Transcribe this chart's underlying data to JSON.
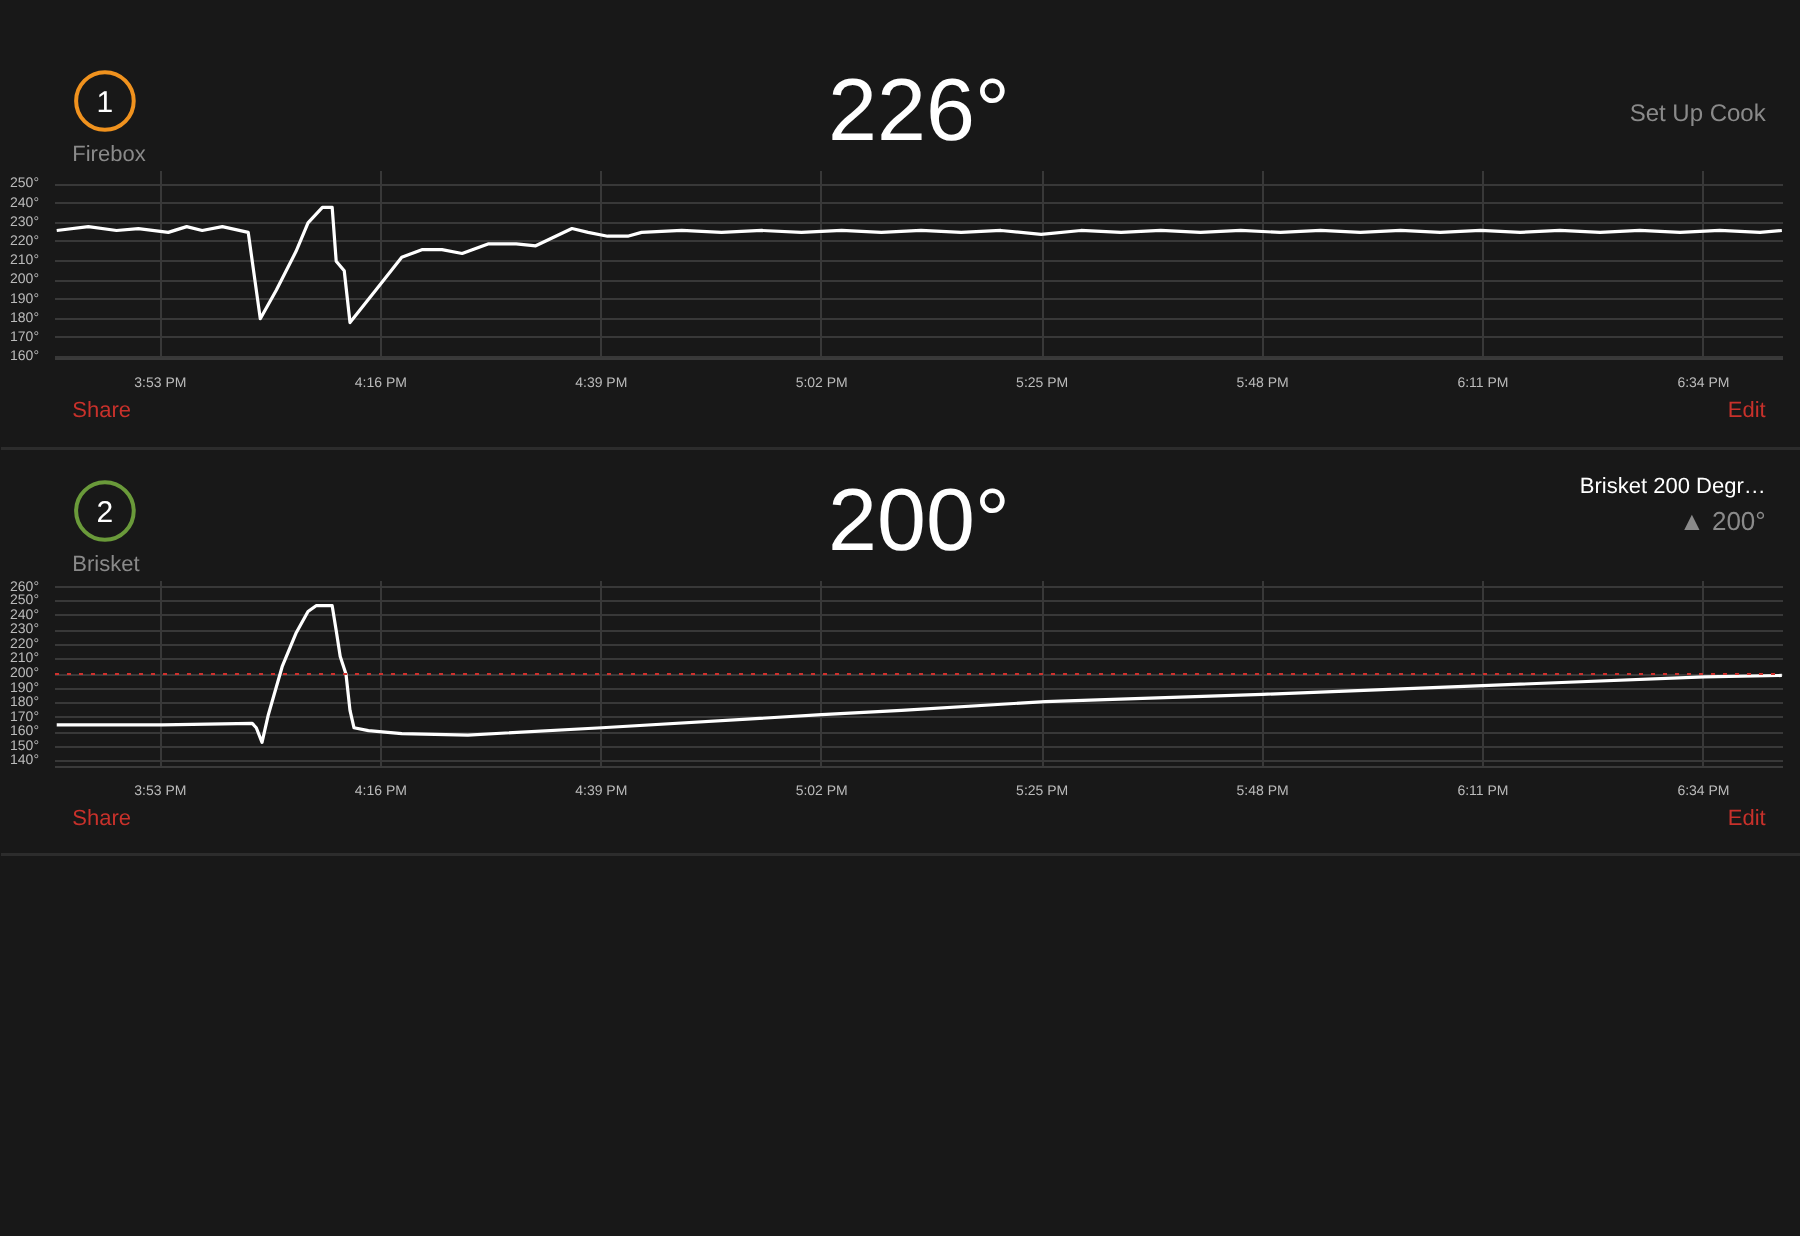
{
  "chart_data": [
    {
      "type": "line",
      "title": "226°",
      "annotations": [
        "1",
        "Set Up Cook",
        "Share",
        "Edit"
      ],
      "series": [
        {
          "name": "Firebox",
          "color": "#ffffff",
          "x": [
            15.703,
            15.758,
            15.807,
            15.845,
            15.897,
            15.929,
            15.956,
            15.991,
            16.036,
            16.057,
            16.085,
            16.119,
            16.14,
            16.165,
            16.182,
            16.189,
            16.203,
            16.213,
            16.258,
            16.303,
            16.338,
            16.373,
            16.408,
            16.453,
            16.502,
            16.536,
            16.599,
            16.627,
            16.661,
            16.696,
            16.72,
            16.79,
            16.859,
            16.929,
            16.998,
            17.068,
            17.137,
            17.206,
            17.276,
            17.345,
            17.415,
            17.484,
            17.554,
            17.623,
            17.692,
            17.762,
            17.831,
            17.901,
            17.97,
            18.04,
            18.109,
            18.179,
            18.248,
            18.317,
            18.387,
            18.456,
            18.526,
            18.595,
            18.665,
            18.703
          ],
          "values": [
            226,
            228,
            226,
            227,
            225,
            228,
            226,
            228,
            225,
            180,
            195,
            215,
            230,
            238,
            238,
            210,
            205,
            178,
            195,
            212,
            216,
            216,
            214,
            219,
            219,
            218,
            227,
            225,
            223,
            223,
            225,
            226,
            225,
            226,
            225,
            226,
            225,
            226,
            225,
            226,
            224,
            226,
            225,
            226,
            225,
            226,
            225,
            226,
            225,
            226,
            225,
            226,
            225,
            226,
            225,
            226,
            225,
            226,
            225,
            226
          ]
        }
      ],
      "xlim": [
        15.7,
        18.705
      ],
      "ylim": [
        159,
        257
      ],
      "xticks": [
        {
          "value": 15.8833,
          "label": "3:53 PM"
        },
        {
          "value": 16.2667,
          "label": "4:16 PM"
        },
        {
          "value": 16.65,
          "label": "4:39 PM"
        },
        {
          "value": 17.0333,
          "label": "5:02 PM"
        },
        {
          "value": 17.4167,
          "label": "5:25 PM"
        },
        {
          "value": 17.8,
          "label": "5:48 PM"
        },
        {
          "value": 18.1833,
          "label": "6:11 PM"
        },
        {
          "value": 18.5667,
          "label": "6:34 PM"
        }
      ],
      "yticks": [
        {
          "value": 160,
          "label": "160°"
        },
        {
          "value": 170,
          "label": "170°"
        },
        {
          "value": 180,
          "label": "180°"
        },
        {
          "value": 190,
          "label": "190°"
        },
        {
          "value": 200,
          "label": "200°"
        },
        {
          "value": 210,
          "label": "210°"
        },
        {
          "value": 220,
          "label": "220°"
        },
        {
          "value": 230,
          "label": "230°"
        },
        {
          "value": 240,
          "label": "240°"
        },
        {
          "value": 250,
          "label": "250°"
        }
      ],
      "grid": true,
      "marker": "none",
      "line_style": "solid"
    },
    {
      "type": "line",
      "title": "200°",
      "annotations": [
        "2",
        "Brisket 200 Degr…",
        "▲ 200°",
        "Share",
        "Edit"
      ],
      "series": [
        {
          "name": "Brisket",
          "color": "#ffffff",
          "x": [
            15.703,
            15.887,
            16.043,
            16.05,
            16.06,
            16.071,
            16.095,
            16.119,
            16.14,
            16.154,
            16.182,
            16.189,
            16.196,
            16.206,
            16.213,
            16.22,
            16.245,
            16.303,
            16.418,
            16.651,
            17.033,
            17.172,
            17.422,
            17.8,
            18.183,
            18.568,
            18.703
          ],
          "values": [
            165,
            165,
            166,
            163,
            153,
            172,
            205,
            228,
            243,
            247,
            247,
            230,
            212,
            200,
            175,
            163,
            161,
            159,
            158,
            163,
            172,
            175,
            181,
            186,
            192,
            198,
            199
          ]
        }
      ],
      "xlim": [
        15.7,
        18.705
      ],
      "ylim": [
        136,
        264
      ],
      "xticks": [
        {
          "value": 15.8833,
          "label": "3:53 PM"
        },
        {
          "value": 16.2667,
          "label": "4:16 PM"
        },
        {
          "value": 16.65,
          "label": "4:39 PM"
        },
        {
          "value": 17.0333,
          "label": "5:02 PM"
        },
        {
          "value": 17.4167,
          "label": "5:25 PM"
        },
        {
          "value": 17.8,
          "label": "5:48 PM"
        },
        {
          "value": 18.1833,
          "label": "6:11 PM"
        },
        {
          "value": 18.5667,
          "label": "6:34 PM"
        }
      ],
      "yticks": [
        {
          "value": 140,
          "label": "140°"
        },
        {
          "value": 150,
          "label": "150°"
        },
        {
          "value": 160,
          "label": "160°"
        },
        {
          "value": 170,
          "label": "170°"
        },
        {
          "value": 180,
          "label": "180°"
        },
        {
          "value": 190,
          "label": "190°"
        },
        {
          "value": 200,
          "label": "200°"
        },
        {
          "value": 210,
          "label": "210°"
        },
        {
          "value": 220,
          "label": "220°"
        },
        {
          "value": 230,
          "label": "230°"
        },
        {
          "value": 240,
          "label": "240°"
        },
        {
          "value": 250,
          "label": "250°"
        },
        {
          "value": 260,
          "label": "260°"
        }
      ],
      "ref_lines": [
        {
          "axis": "y",
          "value": 200,
          "label": null,
          "color": "#d0312d",
          "line_style": "dotted"
        }
      ],
      "grid": true,
      "marker": "none",
      "line_style": "solid"
    }
  ]
}
